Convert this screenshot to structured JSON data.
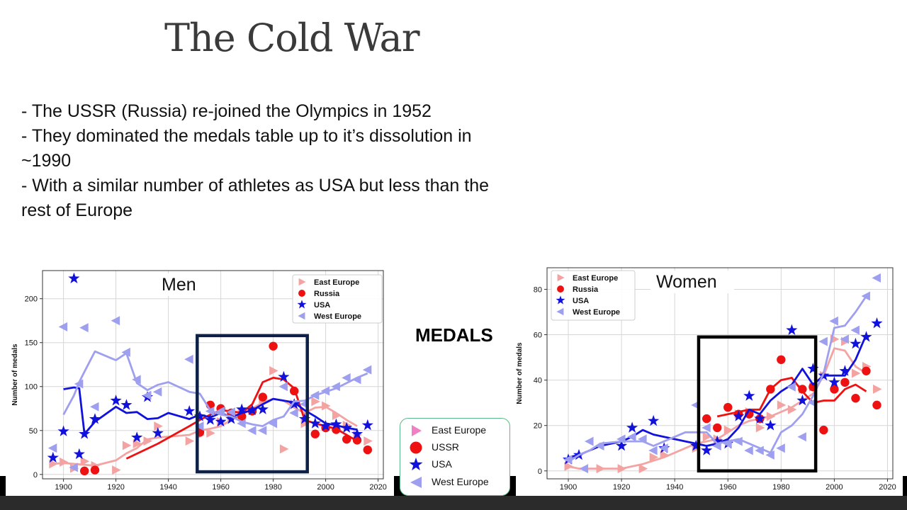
{
  "slide": {
    "title": "The Cold War",
    "bullets": [
      "- The USSR (Russia) re-joined the Olympics in 1952",
      "- They dominated the medals table up to it’s dissolution in",
      "~1990",
      "- With a similar number of athletes as USA but less than the",
      "rest of Europe"
    ],
    "center_label": "MEDALS"
  },
  "shared_legend": {
    "items": [
      {
        "label": "East Europe",
        "color": "#f07fc4",
        "marker": "triangle-right"
      },
      {
        "label": "USSR",
        "color": "#ee1111",
        "marker": "circle"
      },
      {
        "label": "USA",
        "color": "#1111dd",
        "marker": "star"
      },
      {
        "label": "West Europe",
        "color": "#9f9ff0",
        "marker": "triangle-left"
      }
    ]
  },
  "chart_data": [
    {
      "type": "scatter",
      "title": "Men",
      "ylabel": "Number of medals",
      "xlim": [
        1892,
        2022
      ],
      "ylim": [
        -5,
        232
      ],
      "xticks": [
        1900,
        1920,
        1940,
        1960,
        1980,
        2000,
        2020
      ],
      "yticks": [
        0,
        50,
        100,
        150,
        200
      ],
      "legend_position": "top-right",
      "highlight_box": {
        "x": [
          1951,
          1993
        ],
        "y": [
          3,
          158
        ],
        "color": "#0d2147"
      },
      "series": [
        {
          "name": "East Europe",
          "color": "#f4a3a3",
          "marker": "triangle-right",
          "x": [
            1896,
            1900,
            1904,
            1908,
            1912,
            1920,
            1924,
            1928,
            1932,
            1936,
            1948,
            1952,
            1956,
            1960,
            1964,
            1968,
            1972,
            1976,
            1980,
            1984,
            1988,
            1992,
            1996,
            2000,
            2004,
            2008,
            2012,
            2016
          ],
          "y": [
            12,
            14,
            7,
            15,
            10,
            5,
            33,
            35,
            38,
            55,
            38,
            45,
            47,
            60,
            64,
            70,
            73,
            86,
            118,
            29,
            80,
            58,
            83,
            78,
            67,
            56,
            45,
            38
          ],
          "trend_x": [
            1896,
            1900,
            1904,
            1908,
            1912,
            1920,
            1924,
            1928,
            1932,
            1936,
            1948,
            1952,
            1956,
            1960,
            1964,
            1968,
            1972,
            1976,
            1980,
            1984,
            1988,
            1992,
            1996,
            2000,
            2004,
            2008,
            2012
          ],
          "trend_y": [
            12,
            13,
            12,
            11,
            10,
            16,
            24,
            30,
            40,
            42,
            45,
            50,
            52,
            55,
            62,
            68,
            75,
            82,
            86,
            84,
            76,
            70,
            76,
            77,
            70,
            62,
            55
          ]
        },
        {
          "name": "Russia",
          "color": "#ee1111",
          "marker": "circle",
          "x": [
            1908,
            1912,
            1952,
            1956,
            1960,
            1964,
            1968,
            1972,
            1976,
            1980,
            1988,
            1996,
            2000,
            2004,
            2008,
            2012,
            2016
          ],
          "y": [
            4,
            5,
            48,
            79,
            75,
            70,
            66,
            72,
            88,
            146,
            95,
            46,
            53,
            51,
            40,
            39,
            28
          ],
          "trend_x": [
            1924,
            1936,
            1948,
            1952,
            1956,
            1960,
            1964,
            1968,
            1972,
            1976,
            1980,
            1984,
            1988,
            1992,
            1996,
            2000,
            2004,
            2008,
            2012
          ],
          "trend_y": [
            18,
            35,
            55,
            62,
            68,
            73,
            72,
            70,
            80,
            105,
            110,
            108,
            98,
            62,
            58,
            55,
            52,
            45,
            38
          ]
        },
        {
          "name": "USA",
          "color": "#1111dd",
          "marker": "star",
          "x": [
            1896,
            1900,
            1904,
            1906,
            1908,
            1912,
            1920,
            1924,
            1928,
            1932,
            1936,
            1948,
            1952,
            1956,
            1960,
            1964,
            1968,
            1972,
            1976,
            1984,
            1988,
            1992,
            1996,
            2000,
            2004,
            2008,
            2012,
            2016
          ],
          "y": [
            19,
            49,
            223,
            23,
            46,
            63,
            84,
            79,
            42,
            88,
            47,
            72,
            66,
            62,
            60,
            63,
            74,
            73,
            74,
            111,
            80,
            63,
            58,
            55,
            57,
            53,
            46,
            56
          ],
          "trend_x": [
            1900,
            1904,
            1906,
            1908,
            1912,
            1920,
            1924,
            1928,
            1932,
            1936,
            1940,
            1948,
            1952,
            1956,
            1960,
            1964,
            1968,
            1972,
            1976,
            1980,
            1984,
            1988,
            1992,
            1996,
            2000,
            2004,
            2008,
            2012
          ],
          "trend_y": [
            97,
            99,
            98,
            46,
            60,
            77,
            70,
            71,
            63,
            64,
            70,
            63,
            68,
            65,
            70,
            65,
            70,
            73,
            80,
            86,
            84,
            82,
            73,
            66,
            58,
            56,
            53,
            51
          ]
        },
        {
          "name": "West Europe",
          "color": "#9f9ff0",
          "marker": "triangle-left",
          "x": [
            1896,
            1900,
            1904,
            1906,
            1908,
            1912,
            1920,
            1924,
            1928,
            1932,
            1936,
            1948,
            1952,
            1956,
            1960,
            1964,
            1968,
            1972,
            1976,
            1980,
            1984,
            1988,
            1992,
            1996,
            2000,
            2004,
            2008,
            2012,
            2016
          ],
          "y": [
            30,
            168,
            8,
            103,
            167,
            77,
            175,
            139,
            108,
            90,
            94,
            131,
            55,
            72,
            72,
            71,
            58,
            50,
            50,
            58,
            100,
            70,
            80,
            90,
            95,
            100,
            110,
            108,
            119
          ],
          "trend_x": [
            1900,
            1904,
            1906,
            1908,
            1912,
            1916,
            1920,
            1924,
            1928,
            1932,
            1936,
            1940,
            1948,
            1952,
            1956,
            1960,
            1964,
            1968,
            1972,
            1976,
            1980,
            1984,
            1988,
            1992,
            1996,
            2000,
            2004,
            2008,
            2012,
            2016
          ],
          "trend_y": [
            68,
            90,
            105,
            117,
            140,
            135,
            130,
            138,
            104,
            96,
            102,
            105,
            94,
            92,
            73,
            68,
            66,
            60,
            57,
            55,
            62,
            66,
            83,
            84,
            90,
            94,
            98,
            104,
            110,
            115
          ]
        }
      ]
    },
    {
      "type": "scatter",
      "title": "Women",
      "ylabel": "Number of medals",
      "xlim": [
        1892,
        2022
      ],
      "ylim": [
        -3.5,
        89.5
      ],
      "xticks": [
        1900,
        1920,
        1940,
        1960,
        1980,
        2000,
        2020
      ],
      "yticks": [
        0,
        20,
        40,
        60,
        80
      ],
      "legend_position": "top-left",
      "highlight_box": {
        "x": [
          1949,
          1993
        ],
        "y": [
          0,
          59
        ],
        "color": "#000000"
      },
      "series": [
        {
          "name": "East Europe",
          "color": "#f4a3a3",
          "marker": "triangle-right",
          "x": [
            1900,
            1912,
            1920,
            1928,
            1932,
            1936,
            1948,
            1952,
            1956,
            1960,
            1964,
            1968,
            1972,
            1976,
            1980,
            1984,
            1988,
            1992,
            1996,
            2000,
            2004,
            2008,
            2012,
            2016
          ],
          "y": [
            2,
            1,
            1,
            1,
            6,
            7,
            10,
            15,
            14,
            18,
            25,
            26,
            19,
            24,
            29,
            27,
            36,
            37,
            42,
            58,
            57,
            43,
            46,
            36
          ],
          "trend_x": [
            1900,
            1904,
            1912,
            1920,
            1928,
            1936,
            1944,
            1948,
            1952,
            1956,
            1960,
            1964,
            1968,
            1972,
            1976,
            1980,
            1984,
            1988,
            1992,
            1996,
            2000,
            2004,
            2008,
            2012
          ],
          "trend_y": [
            2,
            1,
            1,
            1,
            3,
            6,
            10,
            12,
            13,
            14,
            17,
            20,
            22,
            23,
            24,
            26,
            28,
            31,
            34,
            42,
            54,
            53,
            46,
            43
          ]
        },
        {
          "name": "Russia",
          "color": "#ee1111",
          "marker": "circle",
          "x": [
            1952,
            1956,
            1960,
            1964,
            1968,
            1972,
            1976,
            1980,
            1988,
            1992,
            1996,
            2000,
            2004,
            2008,
            2012,
            2016
          ],
          "y": [
            23,
            19,
            28,
            25,
            25,
            23,
            36,
            49,
            36,
            37,
            18,
            36,
            39,
            32,
            44,
            29
          ],
          "trend_x": [
            1956,
            1960,
            1964,
            1968,
            1972,
            1976,
            1980,
            1984,
            1988,
            1992,
            1996,
            2000,
            2004,
            2008,
            2012
          ],
          "trend_y": [
            24,
            25,
            26,
            27,
            27,
            36,
            40,
            41,
            35,
            30,
            31,
            31,
            36,
            38,
            35
          ]
        },
        {
          "name": "USA",
          "color": "#1111dd",
          "marker": "star",
          "x": [
            1900,
            1904,
            1920,
            1924,
            1932,
            1936,
            1948,
            1952,
            1956,
            1960,
            1964,
            1968,
            1972,
            1976,
            1984,
            1988,
            1992,
            1996,
            2000,
            2004,
            2008,
            2012,
            2016
          ],
          "y": [
            5,
            7,
            11,
            19,
            22,
            10,
            11,
            9,
            13,
            12,
            24,
            33,
            23,
            20,
            62,
            31,
            45,
            42,
            39,
            44,
            56,
            59,
            65
          ],
          "trend_x": [
            1900,
            1904,
            1912,
            1920,
            1924,
            1928,
            1932,
            1936,
            1944,
            1948,
            1952,
            1956,
            1960,
            1964,
            1968,
            1972,
            1976,
            1980,
            1984,
            1988,
            1992,
            1996,
            2000,
            2004,
            2008,
            2012
          ],
          "trend_y": [
            6,
            7,
            11,
            13,
            15,
            18,
            16,
            15,
            13,
            12,
            11,
            12,
            14,
            19,
            27,
            25,
            31,
            35,
            38,
            45,
            38,
            42,
            42,
            42,
            49,
            60
          ]
        },
        {
          "name": "West Europe",
          "color": "#9f9ff0",
          "marker": "triangle-left",
          "x": [
            1900,
            1906,
            1908,
            1912,
            1920,
            1924,
            1928,
            1932,
            1936,
            1948,
            1952,
            1956,
            1960,
            1964,
            1968,
            1972,
            1976,
            1980,
            1984,
            1988,
            1992,
            1996,
            2000,
            2004,
            2008,
            2012,
            2016
          ],
          "y": [
            5,
            1,
            13,
            11,
            14,
            15,
            14,
            9,
            10,
            29,
            19,
            11,
            12,
            13,
            9,
            9,
            7,
            10,
            37,
            15,
            30,
            57,
            66,
            58,
            62,
            77,
            85
          ],
          "trend_x": [
            1900,
            1904,
            1908,
            1912,
            1920,
            1928,
            1932,
            1936,
            1944,
            1948,
            1952,
            1956,
            1960,
            1964,
            1968,
            1972,
            1976,
            1980,
            1984,
            1988,
            1992,
            1996,
            2000,
            2004,
            2008,
            2012
          ],
          "trend_y": [
            4,
            7,
            9,
            12,
            13,
            13,
            11,
            13,
            17,
            17,
            17,
            12,
            13,
            14,
            12,
            10,
            8,
            17,
            20,
            25,
            33,
            43,
            63,
            64,
            70,
            77
          ]
        }
      ]
    }
  ]
}
